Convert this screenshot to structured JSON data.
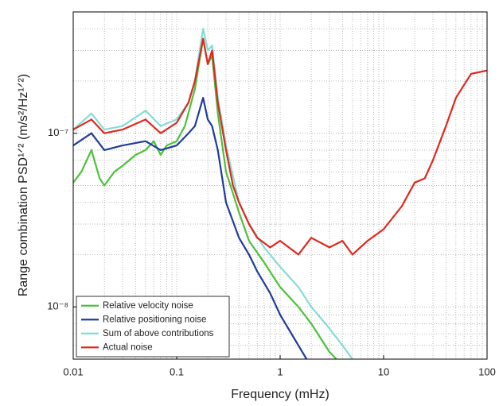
{
  "chart_data": {
    "type": "line",
    "x_label": "Frequency (mHz)",
    "y_label": "Range combination PSD¹ᐟ² (m/s²/Hz¹ᐟ²)",
    "log_x": true,
    "log_y": true,
    "grid": true,
    "minor_grid": true,
    "legend": "lower left",
    "xlim": [
      0.01,
      100
    ],
    "ylim": [
      5e-09,
      5e-07
    ],
    "xticks": [
      0.01,
      0.1,
      1,
      10,
      100
    ],
    "yticks": [
      {
        "value": 1e-08,
        "label": "10⁻⁸"
      },
      {
        "value": 1e-07,
        "label": "10⁻⁷"
      }
    ],
    "series": [
      {
        "name": "Relative velocity noise",
        "color": "#4cc23a",
        "x": [
          0.01,
          0.012,
          0.015,
          0.018,
          0.02,
          0.025,
          0.03,
          0.04,
          0.05,
          0.06,
          0.07,
          0.08,
          0.1,
          0.12,
          0.15,
          0.18,
          0.2,
          0.22,
          0.25,
          0.3,
          0.4,
          0.5,
          0.7,
          1,
          1.5,
          2,
          2.5,
          3,
          3.5
        ],
        "values": [
          5.2e-08,
          6e-08,
          8e-08,
          5.5e-08,
          5e-08,
          6e-08,
          6.5e-08,
          7.5e-08,
          8e-08,
          9e-08,
          7.5e-08,
          8.5e-08,
          9e-08,
          1.1e-07,
          1.8e-07,
          3.5e-07,
          2.5e-07,
          2.8e-07,
          1.3e-07,
          6e-08,
          3.5e-08,
          2.4e-08,
          1.8e-08,
          1.3e-08,
          1e-08,
          8e-09,
          6.5e-09,
          5.5e-09,
          5e-09
        ]
      },
      {
        "name": "Relative positioning noise",
        "color": "#1f3c9a",
        "x": [
          0.01,
          0.015,
          0.02,
          0.03,
          0.05,
          0.07,
          0.1,
          0.13,
          0.15,
          0.18,
          0.2,
          0.22,
          0.25,
          0.3,
          0.4,
          0.5,
          0.6,
          0.8,
          1,
          1.2,
          1.5,
          1.8
        ],
        "values": [
          8.5e-08,
          1e-07,
          8e-08,
          8.5e-08,
          9e-08,
          8e-08,
          8.5e-08,
          1e-07,
          1.1e-07,
          1.6e-07,
          1.2e-07,
          1.1e-07,
          8e-08,
          4e-08,
          2.5e-08,
          2e-08,
          1.6e-08,
          1.2e-08,
          9e-09,
          7.5e-09,
          6e-09,
          5e-09
        ]
      },
      {
        "name": "Sum of above contributions",
        "color": "#84ddd5",
        "x": [
          0.01,
          0.015,
          0.02,
          0.03,
          0.05,
          0.07,
          0.1,
          0.13,
          0.15,
          0.18,
          0.2,
          0.22,
          0.25,
          0.3,
          0.4,
          0.5,
          0.7,
          1,
          1.5,
          2,
          3,
          4,
          5
        ],
        "values": [
          1.05e-07,
          1.3e-07,
          1.05e-07,
          1.1e-07,
          1.35e-07,
          1.1e-07,
          1.2e-07,
          1.5e-07,
          2e-07,
          4e-07,
          3e-07,
          3.2e-07,
          1.6e-07,
          8.5e-08,
          4e-08,
          3e-08,
          2.2e-08,
          1.7e-08,
          1.3e-08,
          1e-08,
          7.5e-09,
          6e-09,
          5e-09
        ]
      },
      {
        "name": "Actual noise",
        "color": "#e0281e",
        "x": [
          0.01,
          0.015,
          0.02,
          0.03,
          0.05,
          0.07,
          0.1,
          0.13,
          0.15,
          0.18,
          0.2,
          0.22,
          0.25,
          0.3,
          0.35,
          0.4,
          0.5,
          0.6,
          0.8,
          1,
          1.5,
          2,
          3,
          4,
          5,
          7,
          10,
          15,
          20,
          25,
          30,
          40,
          50,
          70,
          100
        ],
        "values": [
          1.05e-07,
          1.2e-07,
          1e-07,
          1.05e-07,
          1.2e-07,
          1e-07,
          1.15e-07,
          1.5e-07,
          2e-07,
          3.5e-07,
          2.5e-07,
          3e-07,
          1.5e-07,
          8e-08,
          5e-08,
          4e-08,
          3e-08,
          2.5e-08,
          2.2e-08,
          2.4e-08,
          2e-08,
          2.5e-08,
          2.2e-08,
          2.4e-08,
          2e-08,
          2.4e-08,
          2.8e-08,
          3.8e-08,
          5.2e-08,
          5.5e-08,
          7e-08,
          1.1e-07,
          1.6e-07,
          2.2e-07,
          2.3e-07
        ]
      }
    ]
  }
}
